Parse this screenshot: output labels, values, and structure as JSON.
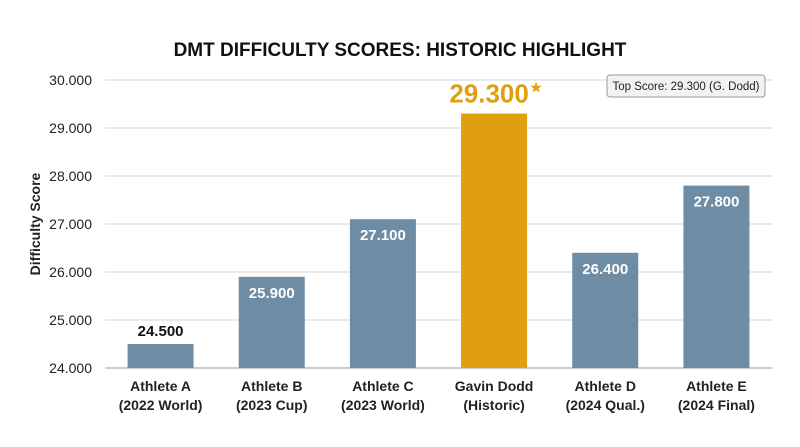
{
  "chart_data": {
    "type": "bar",
    "title": "DMT DIFFICULTY SCORES: HISTORIC HIGHLIGHT",
    "ylabel": "Difficulty Score",
    "xlabel": "",
    "ylim": [
      24,
      30
    ],
    "yticks": [
      "24.000",
      "25.000",
      "26.000",
      "27.000",
      "28.000",
      "29.000",
      "30.000"
    ],
    "grid": true,
    "categories": [
      [
        "Athlete A",
        "(2022 World)"
      ],
      [
        "Athlete B",
        "(2023 Cup)"
      ],
      [
        "Athlete C",
        "(2023 World)"
      ],
      [
        "Gavin Dodd",
        "(Historic)"
      ],
      [
        "Athlete D",
        "(2024 Qual.)"
      ],
      [
        "Athlete E",
        "(2024 Final)"
      ]
    ],
    "values": [
      24.5,
      25.9,
      27.1,
      29.3,
      26.4,
      27.8
    ],
    "value_labels": [
      "24.500",
      "25.900",
      "27.100",
      "29.300",
      "26.400",
      "27.800"
    ],
    "highlight_index": 3,
    "highlight_marker": "★",
    "annotation": "Top Score: 29.300 (G. Dodd)",
    "colors": {
      "bar": "#6f8ca5",
      "highlight": "#e09f0f",
      "label_inside": "#ffffff",
      "label_above": "#111111",
      "grid": "#d4d4d4"
    }
  }
}
